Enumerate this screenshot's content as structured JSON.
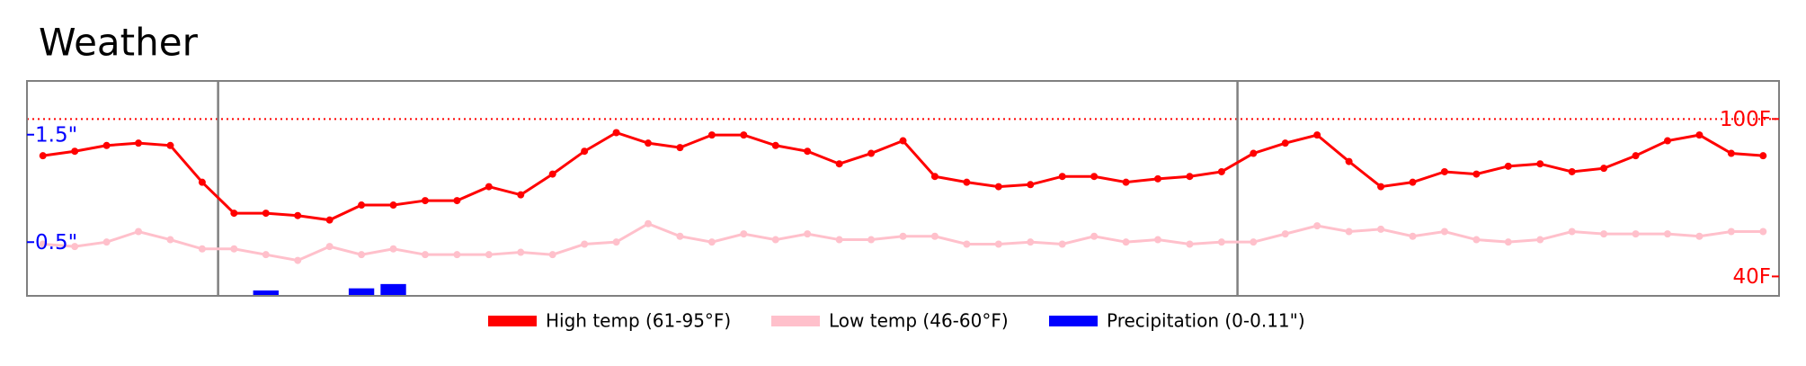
{
  "chart_data": {
    "type": "line",
    "title": "Weather",
    "x": [
      0,
      1,
      2,
      3,
      4,
      5,
      6,
      7,
      8,
      9,
      10,
      11,
      12,
      13,
      14,
      15,
      16,
      17,
      18,
      19,
      20,
      21,
      22,
      23,
      24,
      25,
      26,
      27,
      28,
      29,
      30,
      31,
      32,
      33,
      34,
      35,
      36,
      37,
      38,
      39,
      40,
      41,
      42,
      43,
      44,
      45,
      46,
      47,
      48,
      49,
      50,
      51,
      52,
      53,
      54
    ],
    "xlim": [
      -0.5,
      54.5
    ],
    "vlines": [
      5.5,
      37.5
    ],
    "ylim": [
      32.6,
      114.5
    ],
    "yticks": [
      {
        "value": 100,
        "label": "100F"
      },
      {
        "value": 40,
        "label": "40F"
      }
    ],
    "reference_line": 100,
    "y2lim": [
      0,
      2
    ],
    "y2ticks": [
      {
        "value": 1.5,
        "label": "1.5\""
      },
      {
        "value": 0.5,
        "label": "0.5\""
      }
    ],
    "series": [
      {
        "name": "High temp (61-95°F)",
        "color": "#ff0000",
        "values": [
          86,
          87.7,
          89.9,
          90.8,
          89.9,
          75.9,
          64.1,
          64.1,
          63.2,
          61.5,
          67.2,
          67.2,
          68.9,
          68.9,
          74.2,
          71.1,
          79,
          87.7,
          94.8,
          90.8,
          89.1,
          93.9,
          93.9,
          89.9,
          87.7,
          82.9,
          86.9,
          91.7,
          78.1,
          75.9,
          74.2,
          75,
          78.1,
          78.1,
          75.9,
          77.2,
          78.1,
          79.9,
          86.9,
          90.8,
          93.9,
          83.8,
          74.2,
          75.9,
          79.9,
          79,
          82,
          82.9,
          79.9,
          81.2,
          86,
          91.7,
          93.9,
          86.9,
          86
        ]
      },
      {
        "name": "Low temp (46-60°F)",
        "color": "#ffc0cb",
        "values": [
          52.3,
          51.4,
          53.1,
          57.1,
          54,
          50.5,
          50.5,
          48.3,
          46.1,
          51.4,
          48.3,
          50.5,
          48.3,
          48.3,
          48.3,
          49.2,
          48.3,
          52.3,
          53.1,
          60.1,
          55.3,
          53.1,
          56.2,
          54,
          56.2,
          54,
          54,
          55.3,
          55.3,
          52.3,
          52.3,
          53.1,
          52.3,
          55.3,
          53.1,
          54,
          52.3,
          53.1,
          53.1,
          56.2,
          59.3,
          57.1,
          58,
          55.3,
          57.1,
          54,
          53.1,
          54,
          57.1,
          56.2,
          56.2,
          56.2,
          55.3,
          57.1,
          57.1
        ]
      },
      {
        "name": "Precipitation (0-0.11\")",
        "color": "#0000ff",
        "axis": "y2",
        "kind": "bar",
        "values": [
          0,
          0,
          0,
          0,
          0,
          0,
          0,
          0.05,
          0,
          0,
          0.07,
          0.11,
          0,
          0,
          0,
          0,
          0,
          0,
          0,
          0,
          0,
          0,
          0,
          0,
          0,
          0,
          0,
          0,
          0,
          0,
          0,
          0,
          0,
          0,
          0,
          0,
          0,
          0,
          0,
          0,
          0,
          0,
          0,
          0,
          0,
          0,
          0,
          0,
          0,
          0,
          0,
          0,
          0,
          0,
          0
        ]
      }
    ]
  }
}
